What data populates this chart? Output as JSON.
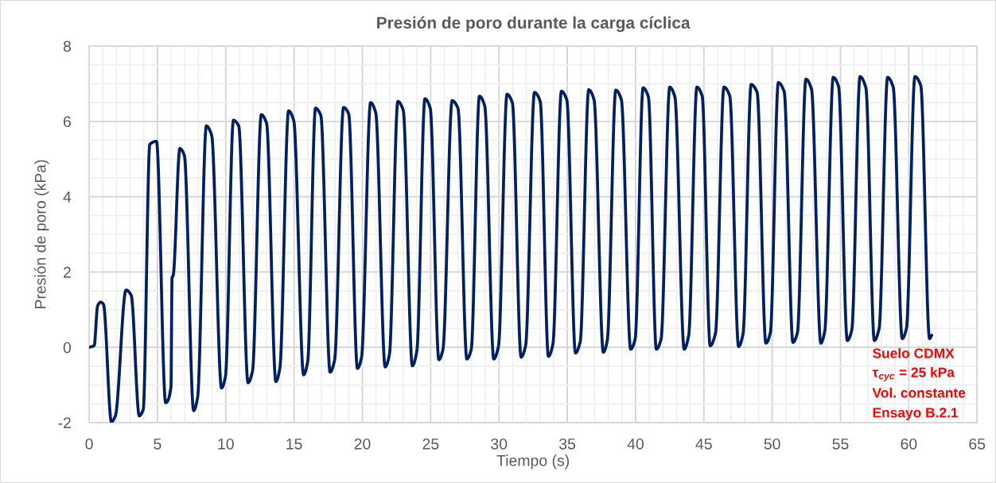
{
  "chart_data": {
    "type": "line",
    "title": "Presión de poro durante la carga cíclica",
    "xlabel": "Tiempo (s)",
    "ylabel": "Presión de poro (kPa)",
    "annotations": [
      "Suelo CDMX",
      "τ$_{cyc}$ = 25 kPa",
      "Vol. constante",
      "Ensayo B.2.1"
    ],
    "color": "#002060",
    "line_style": "solid",
    "grid": true,
    "xlim": [
      0,
      65
    ],
    "ylim": [
      -2,
      8
    ],
    "xticks": [
      0,
      {
        "value": 1,
        "label": null
      },
      {
        "value": 2,
        "label": null
      },
      {
        "value": 3,
        "label": null
      },
      {
        "value": 4,
        "label": null
      },
      5,
      {
        "value": 6,
        "label": null
      },
      {
        "value": 7,
        "label": null
      },
      {
        "value": 8,
        "label": null
      },
      {
        "value": 9,
        "label": null
      },
      10,
      {
        "value": 11,
        "label": null
      },
      {
        "value": 12,
        "label": null
      },
      {
        "value": 13,
        "label": null
      },
      {
        "value": 14,
        "label": null
      },
      15,
      {
        "value": 16,
        "label": null
      },
      {
        "value": 17,
        "label": null
      },
      {
        "value": 18,
        "label": null
      },
      {
        "value": 19,
        "label": null
      },
      20,
      {
        "value": 21,
        "label": null
      },
      {
        "value": 22,
        "label": null
      },
      {
        "value": 23,
        "label": null
      },
      {
        "value": 24,
        "label": null
      },
      25,
      {
        "value": 26,
        "label": null
      },
      {
        "value": 27,
        "label": null
      },
      {
        "value": 28,
        "label": null
      },
      {
        "value": 29,
        "label": null
      },
      30,
      {
        "value": 31,
        "label": null
      },
      {
        "value": 32,
        "label": null
      },
      {
        "value": 33,
        "label": null
      },
      {
        "value": 34,
        "label": null
      },
      35,
      {
        "value": 36,
        "label": null
      },
      {
        "value": 37,
        "label": null
      },
      {
        "value": 38,
        "label": null
      },
      {
        "value": 39,
        "label": null
      },
      40,
      {
        "value": 41,
        "label": null
      },
      {
        "value": 42,
        "label": null
      },
      {
        "value": 43,
        "label": null
      },
      {
        "value": 44,
        "label": null
      },
      45,
      {
        "value": 46,
        "label": null
      },
      {
        "value": 47,
        "label": null
      },
      {
        "value": 48,
        "label": null
      },
      {
        "value": 49,
        "label": null
      },
      50,
      {
        "value": 51,
        "label": null
      },
      {
        "value": 52,
        "label": null
      },
      {
        "value": 53,
        "label": null
      },
      {
        "value": 54,
        "label": null
      },
      55,
      {
        "value": 56,
        "label": null
      },
      {
        "value": 57,
        "label": null
      },
      {
        "value": 58,
        "label": null
      },
      {
        "value": 59,
        "label": null
      },
      60,
      {
        "value": 61,
        "label": null
      },
      {
        "value": 62,
        "label": null
      },
      {
        "value": 63,
        "label": null
      },
      {
        "value": 64,
        "label": null
      },
      65
    ],
    "yticks": [
      -2,
      {
        "value": -1.5,
        "label": null
      },
      {
        "value": -1,
        "label": null
      },
      {
        "value": -0.5,
        "label": null
      },
      0,
      {
        "value": 0.5,
        "label": null
      },
      {
        "value": 1,
        "label": null
      },
      {
        "value": 1.5,
        "label": null
      },
      2,
      {
        "value": 2.5,
        "label": null
      },
      {
        "value": 3,
        "label": null
      },
      {
        "value": 3.5,
        "label": null
      },
      4,
      {
        "value": 4.5,
        "label": null
      },
      {
        "value": 5,
        "label": null
      },
      {
        "value": 5.5,
        "label": null
      },
      6,
      {
        "value": 6.5,
        "label": null
      },
      {
        "value": 7,
        "label": null
      },
      {
        "value": 7.5,
        "label": null
      },
      8
    ],
    "x": [
      0,
      0.37,
      0.62,
      0.85,
      1.05,
      1.63,
      1.92,
      2.7,
      3.08,
      3.67,
      3.96,
      4.44,
      4.93,
      5.6,
      5.99,
      6.07,
      6.15,
      6.64,
      6.97,
      7.65,
      7.94,
      8.58,
      8.97,
      9.69,
      9.98,
      10.56,
      10.95,
      11.63,
      11.96,
      12.6,
      12.99,
      13.67,
      13.96,
      14.6,
      14.98,
      15.7,
      16.0,
      16.57,
      16.96,
      17.64,
      17.97,
      18.62,
      19.0,
      19.64,
      19.94,
      20.6,
      20.98,
      21.67,
      21.98,
      22.6,
      22.99,
      23.66,
      23.99,
      24.58,
      24.97,
      25.6,
      25.9,
      26.57,
      27.0,
      27.65,
      27.97,
      28.57,
      28.96,
      29.62,
      29.97,
      30.59,
      30.98,
      31.62,
      31.95,
      32.6,
      33.02,
      33.62,
      33.95,
      34.57,
      34.97,
      35.6,
      35.95,
      36.57,
      36.96,
      37.64,
      37.93,
      38.55,
      38.96,
      39.64,
      39.97,
      40.55,
      40.94,
      41.52,
      41.87,
      42.5,
      42.88,
      43.56,
      43.89,
      44.49,
      44.88,
      45.46,
      45.85,
      46.47,
      46.9,
      47.54,
      47.87,
      48.46,
      48.9,
      49.54,
      49.87,
      50.45,
      50.88,
      51.52,
      51.85,
      52.47,
      52.88,
      53.56,
      53.85,
      54.47,
      54.86,
      55.5,
      55.83,
      56.43,
      56.86,
      57.48,
      57.83,
      58.45,
      58.86,
      59.52,
      59.83,
      60.45,
      60.88,
      61.52,
      61.68
    ],
    "values": [
      0,
      0.05,
      1.1,
      1.2,
      1.14,
      -1.98,
      -1.82,
      1.52,
      1.38,
      -1.82,
      -1.65,
      5.39,
      5.47,
      -1.47,
      -1.05,
      1.85,
      1.9,
      5.28,
      5.1,
      -1.68,
      -1.33,
      5.88,
      5.63,
      -1.08,
      -0.77,
      6.03,
      5.88,
      -0.94,
      -0.63,
      6.18,
      5.95,
      -0.91,
      -0.56,
      6.28,
      6.02,
      -0.73,
      -0.38,
      6.35,
      6.16,
      -0.66,
      -0.34,
      6.37,
      6.2,
      -0.56,
      -0.27,
      6.5,
      6.23,
      -0.52,
      -0.2,
      6.53,
      6.3,
      -0.49,
      -0.1,
      6.6,
      6.35,
      -0.33,
      -0.06,
      6.55,
      6.35,
      -0.31,
      -0.06,
      6.67,
      6.41,
      -0.31,
      0.04,
      6.72,
      6.5,
      -0.26,
      0.04,
      6.77,
      6.53,
      -0.24,
      0.08,
      6.8,
      6.57,
      -0.15,
      0.15,
      6.84,
      6.58,
      -0.13,
      0.18,
      6.83,
      6.58,
      -0.05,
      0.22,
      6.89,
      6.65,
      -0.05,
      0.22,
      6.91,
      6.65,
      -0.05,
      0.32,
      6.91,
      6.67,
      0.04,
      0.37,
      6.91,
      6.67,
      0.02,
      0.36,
      6.98,
      6.77,
      0.11,
      0.39,
      7.03,
      6.79,
      0.13,
      0.39,
      7.12,
      6.86,
      0.11,
      0.43,
      7.17,
      6.93,
      0.18,
      0.46,
      7.19,
      6.89,
      0.18,
      0.5,
      7.17,
      6.91,
      0.23,
      0.5,
      7.19,
      6.95,
      0.23,
      0.32
    ]
  }
}
